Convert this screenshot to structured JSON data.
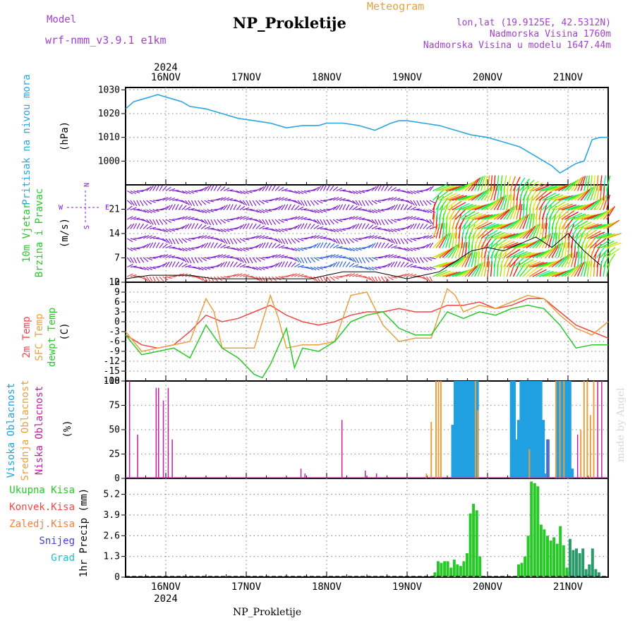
{
  "header": {
    "model_label": "Model",
    "model_name": "wrf-nmm_v3.9.1 e1km",
    "meteogram_label": "Meteogram",
    "station_title": "NP_Prokletije",
    "lonlat": "lon,lat (19.9125E, 42.5312N)",
    "elevation": "Nadmorska Visina 1760m",
    "model_elevation": "Nadmorska Visina u modelu 1647.44m"
  },
  "footer": {
    "station": "NP_Prokletije",
    "credit": "made by Angel"
  },
  "colors": {
    "pressure": "#2aa6e0",
    "temp2m": "#f04848",
    "sfctemp": "#e8a040",
    "dewpt": "#28c828",
    "high_cloud": "#20a0e0",
    "mid_cloud": "#e8a040",
    "low_cloud": "#c020a0",
    "precip_total": "#28c828",
    "precip_conv": "#f04848",
    "precip_frz": "#f08040",
    "precip_snow": "#4040e0",
    "precip_grad": "#20c0c0",
    "wind_calm": "#8020d0"
  },
  "chart_data": [
    {
      "type": "line",
      "panel": "pressure",
      "ylabel": "Pritisak na nivou mora",
      "unit": "(hPa)",
      "yticks": [
        "1000",
        "1010",
        "1020",
        "1030"
      ],
      "ylim": [
        990,
        1031
      ],
      "xlim": [
        -0.5,
        5.5
      ],
      "x_ticks": [
        "16NOV",
        "17NOV",
        "18NOV",
        "19NOV",
        "20NOV",
        "21NOV"
      ],
      "year": "2024",
      "grid": true,
      "series": [
        {
          "x": [
            -0.5,
            -0.4,
            -0.3,
            -0.2,
            -0.1,
            0.0,
            0.1,
            0.2,
            0.3,
            0.5,
            0.7,
            0.9,
            1.1,
            1.3,
            1.5,
            1.7,
            1.9,
            2.0,
            2.2,
            2.4,
            2.6,
            2.8,
            2.9,
            3.0,
            3.2,
            3.4,
            3.6,
            3.8,
            4.0,
            4.2,
            4.4,
            4.6,
            4.8,
            4.9,
            5.0,
            5.1,
            5.2,
            5.3,
            5.4,
            5.5
          ],
          "values": [
            1022,
            1025,
            1026,
            1027,
            1028,
            1027,
            1026,
            1025,
            1023,
            1022,
            1020,
            1018,
            1017,
            1016,
            1014,
            1015,
            1015,
            1016,
            1016,
            1015,
            1013,
            1016,
            1017,
            1017,
            1016,
            1015,
            1013,
            1011,
            1010,
            1008,
            1006,
            1002,
            998,
            995,
            997,
            999,
            1000,
            1009,
            1010,
            1010
          ]
        }
      ]
    },
    {
      "type": "scatter",
      "panel": "wind",
      "ylabel_lines": [
        "10m Vjetar",
        "Brzina i Pravac"
      ],
      "unit": "(m/s)",
      "compass": [
        "N",
        "E",
        "S",
        "W"
      ],
      "yticks": [
        "0",
        "7",
        "14",
        "21"
      ],
      "ylim": [
        0,
        28
      ],
      "xlim": [
        -0.5,
        5.5
      ],
      "grid": true,
      "series": [
        {
          "name": "speed",
          "x": [
            -0.5,
            -0.2,
            0.0,
            0.3,
            0.6,
            0.9,
            1.2,
            1.5,
            1.8,
            2.0,
            2.2,
            2.4,
            2.6,
            2.8,
            3.0,
            3.2,
            3.4,
            3.6,
            3.8,
            4.0,
            4.2,
            4.4,
            4.6,
            4.8,
            5.0,
            5.2,
            5.4
          ],
          "values": [
            1,
            2,
            2,
            2,
            1,
            1,
            1,
            1,
            1,
            2,
            3,
            3,
            3,
            2,
            1,
            2,
            3,
            6,
            9,
            10,
            9,
            11,
            13,
            10,
            14,
            9,
            5
          ]
        }
      ]
    },
    {
      "type": "line",
      "panel": "temperature",
      "ylabel_lines": [
        "2m Temp",
        "SFC Temp",
        "dewpt Temp"
      ],
      "unit": "(C)",
      "yticks": [
        "-18",
        "-15",
        "-12",
        "-9",
        "-6",
        "-3",
        "0",
        "3",
        "6",
        "9",
        "12"
      ],
      "ylim": [
        -18,
        12
      ],
      "xlim": [
        -0.5,
        5.5
      ],
      "grid": true,
      "series": [
        {
          "name": "2m Temp",
          "x": [
            -0.5,
            -0.3,
            -0.1,
            0.1,
            0.3,
            0.5,
            0.7,
            0.9,
            1.1,
            1.3,
            1.5,
            1.7,
            1.9,
            2.1,
            2.3,
            2.5,
            2.7,
            2.9,
            3.1,
            3.3,
            3.5,
            3.7,
            3.9,
            4.1,
            4.3,
            4.5,
            4.7,
            4.9,
            5.1,
            5.3,
            5.5
          ],
          "values": [
            -4,
            -7,
            -8,
            -7,
            -3,
            2,
            0,
            1,
            3,
            5,
            2,
            0,
            -1,
            0,
            2,
            3,
            3,
            4,
            3,
            3,
            5,
            5,
            6,
            4,
            5,
            7,
            7,
            3,
            -1,
            -3,
            -5
          ]
        },
        {
          "name": "SFC Temp",
          "x": [
            -0.5,
            -0.3,
            -0.1,
            0.1,
            0.3,
            0.5,
            0.6,
            0.7,
            0.9,
            1.1,
            1.3,
            1.4,
            1.5,
            1.7,
            1.9,
            2.1,
            2.3,
            2.5,
            2.7,
            2.9,
            3.1,
            3.3,
            3.5,
            3.6,
            3.7,
            3.9,
            4.1,
            4.3,
            4.5,
            4.7,
            4.9,
            5.1,
            5.3,
            5.5
          ],
          "values": [
            -3,
            -9,
            -8,
            -7,
            -6,
            7,
            3,
            -8,
            -8,
            -8,
            8,
            1,
            -8,
            -7,
            -7,
            -6,
            8,
            9,
            -1,
            -6,
            -5,
            -5,
            10,
            8,
            3,
            5,
            4,
            6,
            8,
            7,
            2,
            -2,
            -4,
            0
          ]
        },
        {
          "name": "dewpt Temp",
          "x": [
            -0.5,
            -0.3,
            -0.1,
            0.1,
            0.3,
            0.5,
            0.7,
            0.9,
            1.1,
            1.2,
            1.3,
            1.5,
            1.6,
            1.7,
            1.9,
            2.1,
            2.3,
            2.5,
            2.7,
            2.9,
            3.1,
            3.3,
            3.5,
            3.7,
            3.9,
            4.1,
            4.3,
            4.5,
            4.7,
            4.9,
            5.1,
            5.3,
            5.5
          ],
          "values": [
            -4,
            -10,
            -9,
            -8,
            -11,
            -1,
            -8,
            -11,
            -16,
            -17,
            -13,
            -2,
            -14,
            -8,
            -9,
            -6,
            0,
            2,
            3,
            -2,
            -4,
            -4,
            3,
            1,
            3,
            2,
            4,
            5,
            4,
            -1,
            -8,
            -7,
            -7
          ]
        }
      ]
    },
    {
      "type": "bar",
      "panel": "clouds",
      "ylabel_lines": [
        "Visoka Oblacnost",
        "Srednja Oblacnost",
        "Niska Oblacnost"
      ],
      "unit": "(%)",
      "yticks": [
        "0",
        "25",
        "50",
        "75",
        "100"
      ],
      "ylim": [
        0,
        100
      ],
      "xlim": [
        -0.5,
        5.5
      ],
      "grid": true,
      "series": [
        {
          "name": "Visoka Oblacnost",
          "x": [
            3.57,
            3.6,
            3.63,
            3.66,
            3.69,
            3.72,
            3.75,
            3.78,
            3.81,
            3.84,
            3.87,
            4.3,
            4.33,
            4.36,
            4.39,
            4.42,
            4.45,
            4.48,
            4.51,
            4.54,
            4.57,
            4.6,
            4.63,
            4.66,
            4.69,
            4.72,
            4.75,
            4.87,
            4.9,
            4.93,
            4.96,
            4.99,
            5.02,
            5.05
          ],
          "values": [
            55,
            100,
            100,
            100,
            100,
            100,
            100,
            100,
            100,
            100,
            100,
            100,
            100,
            40,
            60,
            100,
            100,
            100,
            100,
            100,
            100,
            100,
            100,
            100,
            60,
            5,
            40,
            100,
            100,
            100,
            100,
            100,
            100,
            10
          ]
        },
        {
          "name": "Srednja Oblacnost",
          "x": [
            3.24,
            3.3,
            3.36,
            3.39,
            3.42,
            3.85,
            3.88,
            4.52,
            4.85,
            4.9,
            4.95,
            5.16,
            5.2,
            5.24,
            5.28,
            5.32
          ],
          "values": [
            5,
            58,
            100,
            100,
            100,
            100,
            70,
            30,
            100,
            100,
            100,
            50,
            100,
            100,
            65,
            100
          ]
        },
        {
          "name": "Niska Oblacnost",
          "x": [
            -0.45,
            -0.35,
            -0.12,
            -0.09,
            -0.03,
            0.03,
            0.08,
            1.68,
            1.73,
            2.19,
            2.48,
            2.62,
            4.75,
            5.12,
            5.37,
            5.42
          ],
          "values": [
            100,
            45,
            93,
            93,
            80,
            93,
            40,
            10,
            5,
            60,
            8,
            5,
            40,
            45,
            100,
            100
          ]
        }
      ]
    },
    {
      "type": "bar",
      "panel": "precip",
      "ylabel": "1hr Precip (mm)",
      "legend": [
        "Ukupna Kisa",
        "Konvek.Kisa",
        "Zaledj.Kisa",
        "Snijeg",
        "Grad"
      ],
      "yticks": [
        "0",
        "1.3",
        "2.6",
        "3.9",
        "5.2"
      ],
      "ylim": [
        0,
        6.2
      ],
      "xlim": [
        -0.5,
        5.5
      ],
      "grid": true,
      "series": [
        {
          "name": "Ukupna Kisa",
          "x": [
            3.35,
            3.39,
            3.43,
            3.47,
            3.51,
            3.55,
            3.59,
            3.63,
            3.67,
            3.71,
            3.75,
            3.79,
            3.83,
            3.87,
            3.91,
            4.39,
            4.43,
            4.47,
            4.51,
            4.55,
            4.59,
            4.63,
            4.67,
            4.71,
            4.75,
            4.79,
            4.83,
            4.87,
            4.91,
            4.95,
            4.99,
            5.03,
            5.07,
            5.11,
            5.15,
            5.19,
            5.23,
            5.27,
            5.31,
            5.35,
            5.39
          ],
          "values": [
            0.3,
            1.0,
            0.9,
            1.0,
            1.0,
            0.6,
            1.1,
            0.8,
            0.7,
            1.0,
            1.5,
            4.0,
            4.6,
            4.2,
            1.3,
            0.8,
            0.9,
            1.3,
            2.6,
            6.0,
            5.9,
            5.7,
            3.3,
            3.0,
            2.6,
            2.3,
            2.5,
            2.1,
            3.2,
            2.0,
            0.6,
            2.4,
            1.7,
            1.8,
            1.5,
            1.8,
            0.5,
            0.8,
            1.8,
            0.5,
            0.3
          ]
        }
      ]
    }
  ]
}
